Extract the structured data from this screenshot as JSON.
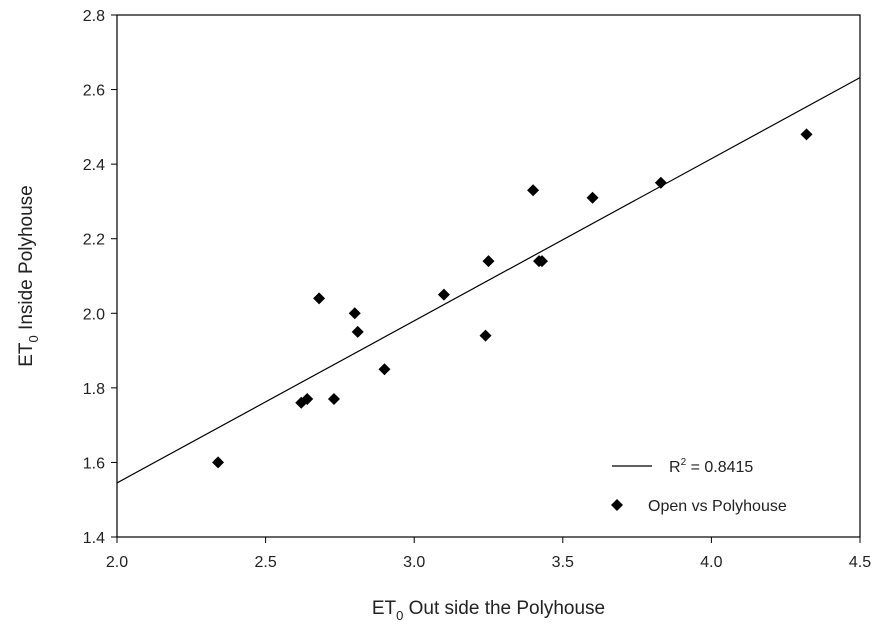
{
  "chart_data": {
    "type": "scatter",
    "xlabel": "ET0 Out side the Polyhouse",
    "xlabel_main": "ET",
    "xlabel_sub": "0",
    "xlabel_rest": " Out side the Polyhouse",
    "ylabel": "ET0 Inside Polyhouse",
    "ylabel_main": "ET",
    "ylabel_sub": "0",
    "ylabel_rest": " Inside Polyhouse",
    "xlim": [
      2.0,
      4.5
    ],
    "ylim": [
      1.4,
      2.8
    ],
    "xticks": [
      2.0,
      2.5,
      3.0,
      3.5,
      4.0,
      4.5
    ],
    "xtick_labels": [
      "2.0",
      "2.5",
      "3.0",
      "3.5",
      "4.0",
      "4.5"
    ],
    "yticks": [
      1.4,
      1.6,
      1.8,
      2.0,
      2.2,
      2.4,
      2.6,
      2.8
    ],
    "ytick_labels": [
      "1.4",
      "1.6",
      "1.8",
      "2.0",
      "2.2",
      "2.4",
      "2.6",
      "2.8"
    ],
    "grid": false,
    "legend_position": "bottom-right",
    "series": [
      {
        "name": "Open vs Polyhouse",
        "marker": "diamond",
        "color": "#000000",
        "x": [
          2.34,
          2.62,
          2.64,
          2.68,
          2.73,
          2.8,
          2.81,
          2.9,
          3.1,
          3.24,
          3.25,
          3.4,
          3.42,
          3.43,
          3.6,
          3.83,
          4.32
        ],
        "y": [
          1.6,
          1.76,
          1.77,
          2.04,
          1.77,
          2.0,
          1.95,
          1.85,
          2.05,
          1.94,
          2.14,
          2.33,
          2.14,
          2.14,
          2.31,
          2.35,
          2.48
        ]
      }
    ],
    "trendline": {
      "type": "linear",
      "label_prefix": "R",
      "label_sup": "2",
      "label_value": " = 0.8415",
      "x": [
        2.0,
        4.5
      ],
      "y": [
        1.545,
        2.632
      ],
      "color": "#000000"
    }
  }
}
